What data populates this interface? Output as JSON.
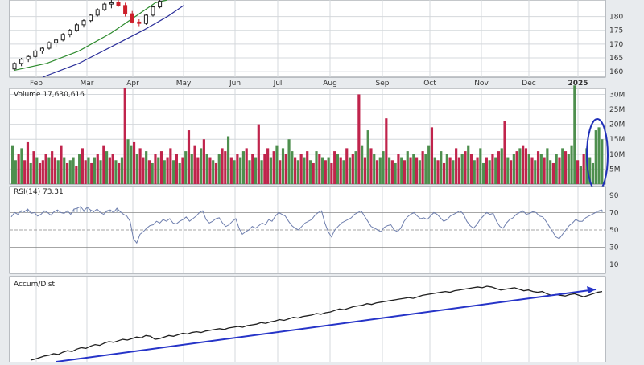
{
  "colors": {
    "background": "#e8ebee",
    "panel": "#ffffff",
    "grid": "#d4d8dc",
    "axis_text": "#333333",
    "up_candle": "#1f1f1f",
    "down_candle": "#cc1f2a",
    "ma_short": "#2e8b2e",
    "ma_long": "#2b2f9a",
    "volume_up": "#4e8f4e",
    "volume_down": "#c0244c",
    "rsi_line": "#6f7fae",
    "rsi_fill": "#8fa3be",
    "accum_line": "#1f1f1f",
    "trend_line": "#2634c8",
    "highlight": "#2030b8"
  },
  "chart_data": [
    {
      "type": "line",
      "name": "price",
      "x_months": [
        "Feb",
        "Mar",
        "Apr",
        "May",
        "Jun",
        "Jul",
        "Aug",
        "Sep",
        "Oct",
        "Nov",
        "Dec",
        "2025"
      ],
      "y_ticks": [
        160,
        165,
        170,
        175,
        180
      ],
      "ylim": [
        158,
        186
      ],
      "ohlc_days_index_start": 0,
      "ohlc": [
        [
          161,
          163.5,
          160.5,
          163
        ],
        [
          163,
          165,
          162,
          164.5
        ],
        [
          164.5,
          166,
          163.5,
          165.5
        ],
        [
          165.5,
          168,
          165,
          167.5
        ],
        [
          167.5,
          169,
          166.5,
          168.5
        ],
        [
          168.5,
          171,
          168,
          170.5
        ],
        [
          170.5,
          172,
          169,
          171.5
        ],
        [
          171.5,
          174,
          171,
          173.5
        ],
        [
          173.5,
          175.5,
          172.5,
          175
        ],
        [
          175,
          177.5,
          174.5,
          177
        ],
        [
          177,
          179,
          176,
          178.5
        ],
        [
          178.5,
          181,
          178,
          180.5
        ],
        [
          180.5,
          183,
          180,
          182.5
        ],
        [
          182.5,
          185,
          182,
          184.5
        ],
        [
          184.5,
          186,
          183,
          185
        ],
        [
          185,
          186,
          183.5,
          184
        ],
        [
          184,
          185,
          180,
          181
        ],
        [
          181,
          182,
          177.5,
          178
        ],
        [
          178,
          179,
          176.5,
          177.5
        ],
        [
          177.5,
          181,
          177,
          180.5
        ],
        [
          180.5,
          184,
          180,
          183.5
        ],
        [
          183.5,
          186,
          183,
          185.5
        ]
      ],
      "ma_short": [
        [
          0,
          160.5
        ],
        [
          40,
          163
        ],
        [
          80,
          167.5
        ],
        [
          120,
          174
        ],
        [
          150,
          180
        ],
        [
          175,
          185
        ],
        [
          190,
          186
        ]
      ],
      "ma_long": [
        [
          35,
          158
        ],
        [
          80,
          163
        ],
        [
          120,
          169
        ],
        [
          160,
          175
        ],
        [
          190,
          180
        ],
        [
          210,
          184
        ]
      ],
      "x_range_pixels_note": ""
    },
    {
      "type": "bar",
      "name": "volume",
      "label": "Volume",
      "last_value": "17,630,616",
      "y_ticks": [
        "5M",
        "10M",
        "15M",
        "20M",
        "25M",
        "30M"
      ],
      "ylim": [
        0,
        32
      ],
      "values": [
        13,
        8,
        10,
        12,
        8,
        14,
        7,
        11,
        9,
        7,
        8,
        10,
        9,
        11,
        9,
        8,
        13,
        9,
        7,
        8,
        9,
        6,
        10,
        12,
        8,
        9,
        7,
        9,
        10,
        8,
        13,
        11,
        9,
        10,
        8,
        7,
        9,
        32,
        15,
        13,
        14,
        10,
        12,
        9,
        11,
        8,
        7,
        10,
        9,
        11,
        8,
        9,
        12,
        8,
        10,
        7,
        9,
        11,
        18,
        10,
        13,
        9,
        12,
        15,
        10,
        9,
        8,
        7,
        10,
        12,
        11,
        16,
        9,
        8,
        10,
        9,
        11,
        12,
        8,
        10,
        9,
        20,
        8,
        10,
        12,
        9,
        11,
        13,
        8,
        12,
        10,
        15,
        11,
        9,
        8,
        10,
        9,
        11,
        8,
        7,
        11,
        10,
        9,
        8,
        9,
        7,
        11,
        10,
        9,
        8,
        12,
        9,
        10,
        11,
        30,
        13,
        9,
        18,
        12,
        10,
        8,
        9,
        11,
        22,
        9,
        8,
        7,
        10,
        9,
        8,
        11,
        9,
        10,
        9,
        8,
        11,
        10,
        13,
        19,
        9,
        8,
        11,
        7,
        10,
        9,
        8,
        12,
        9,
        10,
        11,
        13,
        10,
        8,
        9,
        12,
        7,
        9,
        8,
        10,
        9,
        11,
        12,
        21,
        9,
        8,
        10,
        11,
        12,
        13,
        12,
        10,
        9,
        8,
        11,
        10,
        9,
        12,
        8,
        7,
        10,
        9,
        12,
        11,
        10,
        13,
        33,
        8,
        6,
        10,
        12,
        9,
        7,
        18,
        19,
        15
      ],
      "up": [
        1,
        1,
        0,
        1,
        0,
        0,
        1,
        0,
        1,
        0,
        0,
        0,
        1,
        0,
        0,
        1,
        0,
        1,
        0,
        1,
        1,
        0,
        1,
        0,
        0,
        1,
        0,
        1,
        0,
        1,
        0,
        1,
        0,
        0,
        1,
        0,
        1,
        0,
        1,
        1,
        0,
        1,
        0,
        0,
        1,
        0,
        1,
        0,
        1,
        0,
        1,
        0,
        0,
        1,
        0,
        1,
        0,
        1,
        0,
        1,
        0,
        0,
        1,
        0,
        1,
        0,
        1,
        0,
        1,
        0,
        0,
        1,
        0,
        1,
        0,
        1,
        1,
        0,
        1,
        0,
        1,
        0,
        1,
        0,
        0,
        1,
        0,
        1,
        0,
        1,
        0,
        1,
        1,
        0,
        1,
        0,
        1,
        0,
        1,
        0,
        1,
        0,
        1,
        0,
        1,
        0,
        0,
        1,
        0,
        1,
        0,
        1,
        0,
        1,
        0,
        1,
        0,
        1,
        0,
        1,
        0,
        1,
        1,
        0,
        1,
        0,
        1,
        0,
        1,
        0,
        1,
        0,
        1,
        0,
        1,
        0,
        1,
        1,
        0,
        1,
        0,
        1,
        0,
        1,
        0,
        1,
        0,
        0,
        1,
        0,
        1,
        0,
        1,
        0,
        1,
        1,
        0,
        1,
        0,
        1,
        0,
        1,
        0,
        1,
        0,
        1,
        0,
        1,
        0,
        0,
        1,
        0,
        1,
        0,
        1,
        0,
        1,
        1,
        0,
        1,
        0,
        1,
        0,
        1,
        1,
        1,
        0,
        1,
        0,
        1,
        1,
        1,
        1,
        1,
        1
      ]
    },
    {
      "type": "line",
      "name": "rsi",
      "label": "RSI(14)",
      "last_value": "73.31",
      "y_ticks": [
        10,
        30,
        50,
        70,
        90
      ],
      "ylim": [
        0,
        100
      ],
      "values": [
        65,
        70,
        68,
        72,
        71,
        74,
        69,
        70,
        66,
        68,
        72,
        70,
        67,
        71,
        73,
        70,
        69,
        72,
        68,
        74,
        75,
        77,
        72,
        76,
        73,
        71,
        74,
        70,
        68,
        72,
        73,
        70,
        75,
        71,
        68,
        66,
        60,
        40,
        35,
        45,
        48,
        52,
        55,
        56,
        60,
        58,
        62,
        60,
        63,
        58,
        57,
        60,
        62,
        65,
        60,
        63,
        66,
        70,
        72,
        62,
        58,
        60,
        63,
        64,
        58,
        54,
        56,
        60,
        63,
        52,
        45,
        48,
        50,
        54,
        52,
        55,
        58,
        56,
        62,
        60,
        66,
        70,
        68,
        66,
        60,
        55,
        52,
        50,
        54,
        58,
        60,
        62,
        67,
        70,
        72,
        58,
        48,
        42,
        50,
        54,
        58,
        60,
        62,
        64,
        68,
        70,
        72,
        66,
        60,
        54,
        52,
        50,
        48,
        53,
        55,
        56,
        50,
        48,
        52,
        60,
        65,
        68,
        70,
        66,
        63,
        64,
        62,
        66,
        70,
        68,
        64,
        60,
        62,
        66,
        68,
        70,
        72,
        68,
        60,
        55,
        52,
        56,
        62,
        66,
        70,
        68,
        69,
        60,
        54,
        52,
        58,
        62,
        64,
        68,
        70,
        72,
        68,
        69,
        71,
        70,
        66,
        65,
        60,
        54,
        48,
        42,
        40,
        45,
        50,
        55,
        58,
        62,
        60,
        60,
        64,
        66,
        68,
        70,
        72,
        73
      ],
      "ref_lines": [
        50,
        70,
        30
      ]
    },
    {
      "type": "line",
      "name": "accum_dist",
      "label": "Accum/Dist",
      "values": [
        5,
        8,
        12,
        16,
        18,
        22,
        20,
        26,
        30,
        28,
        34,
        38,
        36,
        42,
        46,
        44,
        50,
        54,
        52,
        56,
        60,
        58,
        62,
        66,
        64,
        70,
        68,
        60,
        62,
        66,
        70,
        68,
        72,
        76,
        74,
        78,
        80,
        78,
        82,
        84,
        86,
        88,
        86,
        90,
        92,
        94,
        92,
        96,
        98,
        100,
        104,
        102,
        106,
        108,
        112,
        110,
        114,
        118,
        116,
        120,
        122,
        124,
        128,
        126,
        130,
        132,
        136,
        140,
        138,
        142,
        146,
        148,
        150,
        154,
        152,
        156,
        158,
        160,
        162,
        164,
        166,
        168,
        170,
        168,
        172,
        176,
        178,
        180,
        182,
        184,
        186,
        184,
        188,
        190,
        192,
        194,
        196,
        198,
        196,
        200,
        198,
        194,
        190,
        192,
        194,
        196,
        192,
        188,
        190,
        186,
        184,
        186,
        180,
        176,
        178,
        176,
        174,
        178,
        180,
        176,
        172,
        176,
        180,
        184,
        186
      ],
      "trend_line": [
        [
          0,
          0
        ],
        [
          1,
          1
        ]
      ]
    }
  ]
}
